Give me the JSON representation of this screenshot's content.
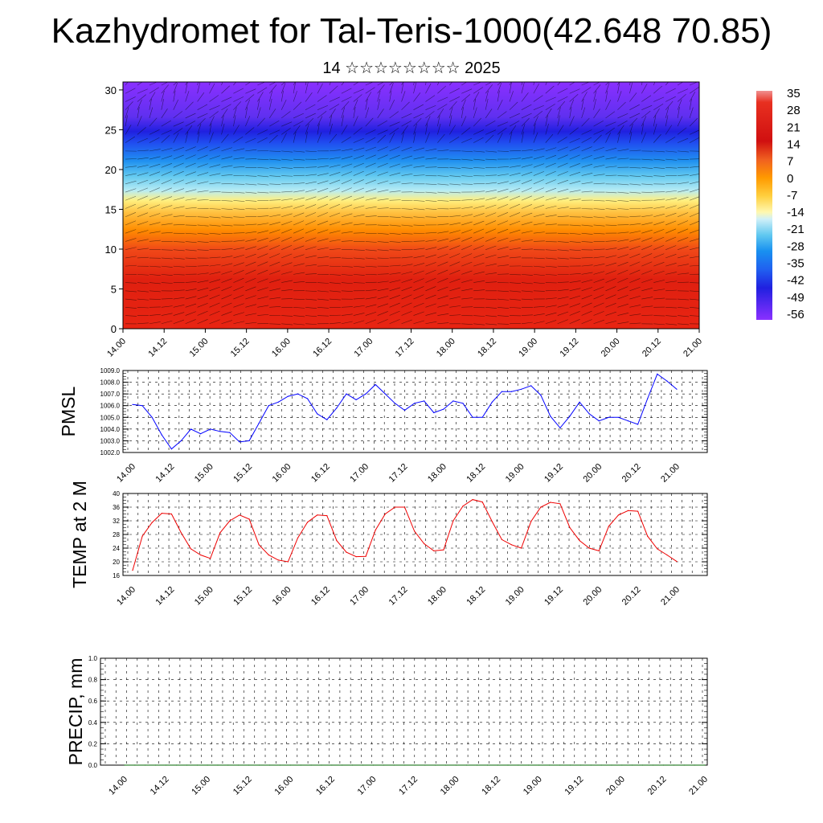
{
  "header": {
    "title": "Kazhydromet for Tal-Teris-1000(42.648 70.85)",
    "subtitle": "14 ☆☆☆☆☆☆☆☆ 2025"
  },
  "time_ticks": [
    "14.00",
    "14.12",
    "15.00",
    "15.12",
    "16.00",
    "16.12",
    "17.00",
    "17.12",
    "18.00",
    "18.12",
    "19.00",
    "19.12",
    "20.00",
    "20.12",
    "21.00"
  ],
  "chart_data": [
    {
      "type": "heatmap",
      "title": "",
      "xlabel": "",
      "ylabel": "",
      "x_ticks": [
        "14.00",
        "14.12",
        "15.00",
        "15.12",
        "16.00",
        "16.12",
        "17.00",
        "17.12",
        "18.00",
        "18.12",
        "19.00",
        "19.12",
        "20.00",
        "20.12",
        "21.00"
      ],
      "y_ticks": [
        0,
        5,
        10,
        15,
        20,
        25,
        30
      ],
      "ylim": [
        0,
        31
      ],
      "colorbar_labels": [
        35,
        28,
        21,
        14,
        7,
        0,
        -7,
        -14,
        -21,
        -28,
        -35,
        -42,
        -49,
        -56
      ],
      "colorbar_range": [
        -60,
        38
      ],
      "description_layers": "temperature shading with wind vectors",
      "temperature_bands": [
        {
          "height": 0,
          "value": 33
        },
        {
          "height": 5,
          "value": 27
        },
        {
          "height": 9,
          "value": 20
        },
        {
          "height": 12,
          "value": 8
        },
        {
          "height": 16,
          "value": -7
        },
        {
          "height": 19,
          "value": -24
        },
        {
          "height": 22,
          "value": -36
        },
        {
          "height": 25,
          "value": -52
        },
        {
          "height": 28,
          "value": -58
        },
        {
          "height": 31,
          "value": -60
        }
      ],
      "colors": {
        "hot": "#e02010",
        "warm": "#ff8c00",
        "mild": "#ffe060",
        "cool": "#a0e0f0",
        "cold": "#2080ff",
        "frigid": "#2020e0",
        "extreme": "#8030ff"
      }
    },
    {
      "type": "line",
      "ylabel": "PMSL",
      "ylim": [
        1002.0,
        1009.0
      ],
      "y_ticks": [
        "1002.0",
        "1003.0",
        "1004.0",
        "1005.0",
        "1006.0",
        "1007.0",
        "1008.0",
        "1009.0"
      ],
      "x_ticks": [
        "14.00",
        "14.12",
        "15.00",
        "15.12",
        "16.00",
        "16.12",
        "17.00",
        "17.12",
        "18.00",
        "18.12",
        "19.00",
        "19.12",
        "20.00",
        "20.12",
        "21.00"
      ],
      "color": "#0000ff",
      "series": [
        {
          "values": [
            1006.1,
            1006.0,
            1005.0,
            1003.5,
            1002.3,
            1003.0,
            1004.0,
            1003.6,
            1004.0,
            1003.8,
            1003.7,
            1002.9,
            1003.0,
            1004.5,
            1006.0,
            1006.3,
            1006.8,
            1007.0,
            1006.6,
            1005.3,
            1004.8,
            1005.8,
            1007.0,
            1006.5,
            1007.0,
            1007.8,
            1007.0,
            1006.2,
            1005.6,
            1006.2,
            1006.4,
            1005.4,
            1005.7,
            1006.4,
            1006.2,
            1005.0,
            1005.0,
            1006.3,
            1007.2,
            1007.2,
            1007.4,
            1007.7,
            1006.9,
            1005.1,
            1004.1,
            1005.1,
            1006.3,
            1005.3,
            1004.7,
            1005.0,
            1005.0,
            1004.7,
            1004.4,
            1006.6,
            1008.7,
            1008.1,
            1007.4
          ]
        }
      ]
    },
    {
      "type": "line",
      "ylabel": "TEMP at 2 M",
      "ylim": [
        16,
        40
      ],
      "y_ticks": [
        "16",
        "20",
        "24",
        "28",
        "32",
        "36",
        "40"
      ],
      "x_ticks": [
        "14.00",
        "14.12",
        "15.00",
        "15.12",
        "16.00",
        "16.12",
        "17.00",
        "17.12",
        "18.00",
        "18.12",
        "19.00",
        "19.12",
        "20.00",
        "20.12",
        "21.00"
      ],
      "color": "#ee0000",
      "series": [
        {
          "values": [
            17.5,
            27.5,
            31.5,
            34.2,
            34.0,
            28.5,
            23.8,
            22.0,
            21.0,
            28.5,
            32.0,
            33.7,
            32.5,
            25.0,
            22.0,
            20.5,
            20.0,
            27.0,
            31.6,
            33.7,
            33.5,
            26.2,
            22.8,
            21.5,
            21.6,
            29.3,
            34.0,
            36.0,
            36.0,
            29.0,
            25.3,
            23.2,
            23.5,
            32.0,
            36.3,
            38.2,
            37.5,
            31.8,
            26.5,
            25.0,
            24.0,
            31.8,
            36.0,
            37.4,
            37.0,
            30.0,
            26.2,
            24.0,
            23.2,
            30.4,
            33.7,
            35.0,
            34.8,
            27.5,
            23.8,
            22.0,
            20.1
          ]
        }
      ]
    },
    {
      "type": "line",
      "ylabel": "PRECIP, mm",
      "ylim": [
        0.0,
        1.0
      ],
      "y_ticks": [
        "0.0",
        "0.2",
        "0.4",
        "0.6",
        "0.8",
        "1.0"
      ],
      "x_ticks": [
        "14.00",
        "14.12",
        "15.00",
        "15.12",
        "16.00",
        "16.12",
        "17.00",
        "17.12",
        "18.00",
        "18.12",
        "19.00",
        "19.12",
        "20.00",
        "20.12",
        "21.00"
      ],
      "color": "#006400",
      "series": [
        {
          "values": [
            0,
            0,
            0,
            0,
            0,
            0,
            0,
            0,
            0,
            0,
            0,
            0,
            0,
            0,
            0,
            0,
            0,
            0,
            0,
            0,
            0,
            0,
            0,
            0,
            0,
            0,
            0,
            0,
            0,
            0,
            0,
            0,
            0,
            0,
            0,
            0,
            0,
            0,
            0,
            0,
            0,
            0,
            0,
            0,
            0,
            0,
            0,
            0,
            0,
            0,
            0,
            0,
            0,
            0,
            0,
            0,
            0
          ]
        }
      ]
    }
  ]
}
